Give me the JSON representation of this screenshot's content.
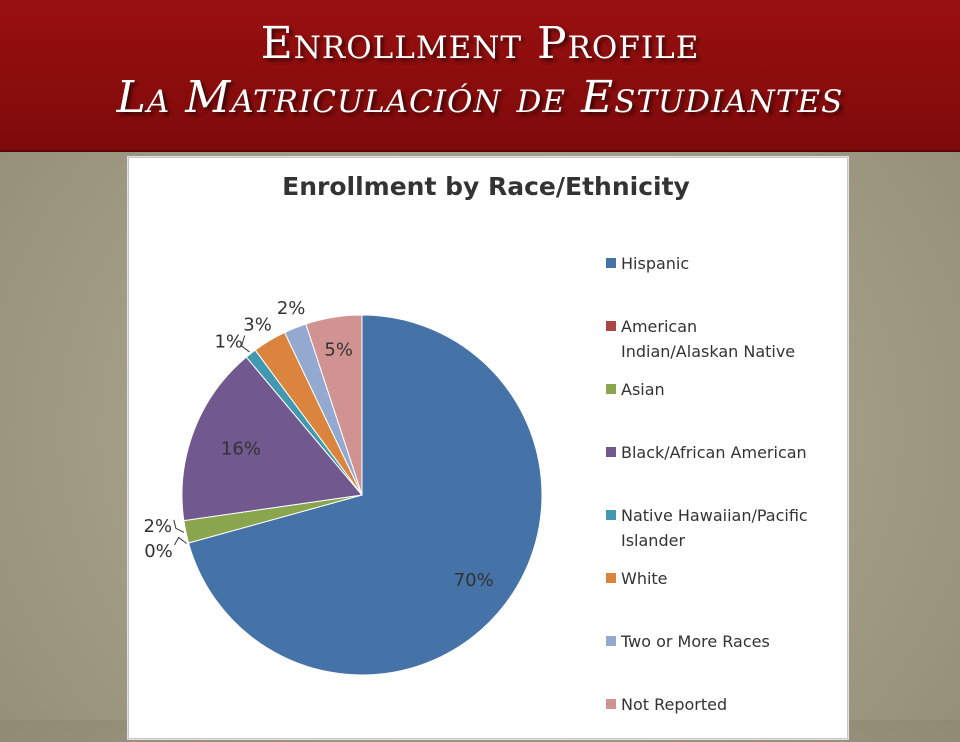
{
  "slide": {
    "title_line1": "Enrollment Profile",
    "title_line2": "La Matriculación de Estudiantes"
  },
  "chart_data": {
    "type": "pie",
    "title": "Enrollment by Race/Ethnicity",
    "categories": [
      "Hispanic",
      "American Indian/Alaskan Native",
      "Asian",
      "Black/African American",
      "Native Hawaiian/Pacific Islander",
      "White",
      "Two or More Races",
      "Not Reported"
    ],
    "values": [
      70,
      0,
      2,
      16,
      1,
      3,
      2,
      5
    ],
    "data_labels": [
      "70%",
      "0%",
      "2%",
      "16%",
      "1%",
      "3%",
      "2%",
      "5%"
    ],
    "colors": [
      "#4572a7",
      "#aa4643",
      "#89a54e",
      "#71588f",
      "#4198af",
      "#db843d",
      "#93a9cf",
      "#d19392"
    ],
    "legend_position": "right"
  }
}
